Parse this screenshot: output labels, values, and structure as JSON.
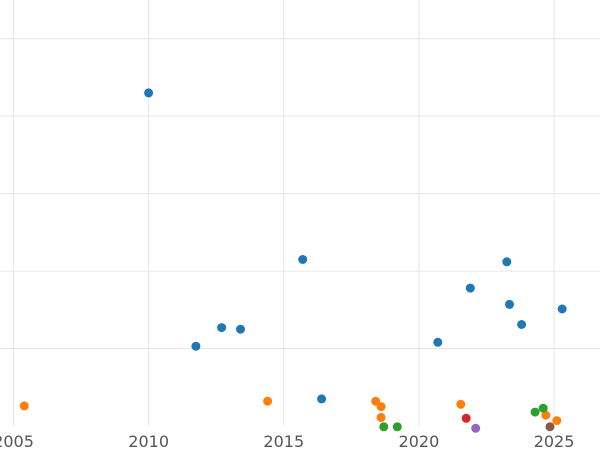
{
  "chart_data": {
    "type": "scatter",
    "title": "",
    "xlabel": "",
    "ylabel": "",
    "grid": true,
    "xlim": [
      2004.5,
      2026.7
    ],
    "ylim": [
      0,
      5.5
    ],
    "x_ticks": [
      2005,
      2010,
      2015,
      2020,
      2025
    ],
    "x_tick_labels": [
      "2005",
      "2010",
      "2015",
      "2020",
      "2025"
    ],
    "y_gridlines": [
      1,
      2,
      3,
      4,
      5
    ],
    "series": [
      {
        "color": "#1f77b4",
        "points": [
          {
            "x": 2010.0,
            "y": 4.3
          },
          {
            "x": 2011.75,
            "y": 1.03
          },
          {
            "x": 2012.7,
            "y": 1.27
          },
          {
            "x": 2013.4,
            "y": 1.25
          },
          {
            "x": 2015.7,
            "y": 2.15
          },
          {
            "x": 2016.4,
            "y": 0.35
          },
          {
            "x": 2020.7,
            "y": 1.08
          },
          {
            "x": 2021.9,
            "y": 1.78
          },
          {
            "x": 2023.25,
            "y": 2.12
          },
          {
            "x": 2023.35,
            "y": 1.57
          },
          {
            "x": 2023.8,
            "y": 1.31
          },
          {
            "x": 2025.3,
            "y": 1.51
          }
        ]
      },
      {
        "color": "#ff7f0e",
        "points": [
          {
            "x": 2005.4,
            "y": 0.26
          },
          {
            "x": 2014.4,
            "y": 0.32
          },
          {
            "x": 2018.4,
            "y": 0.32
          },
          {
            "x": 2018.6,
            "y": 0.25
          },
          {
            "x": 2018.6,
            "y": 0.11
          },
          {
            "x": 2021.55,
            "y": 0.28
          },
          {
            "x": 2024.7,
            "y": 0.14
          },
          {
            "x": 2025.1,
            "y": 0.07
          }
        ]
      },
      {
        "color": "#2ca02c",
        "points": [
          {
            "x": 2018.7,
            "y": -0.01
          },
          {
            "x": 2019.2,
            "y": -0.01
          },
          {
            "x": 2024.3,
            "y": 0.18
          },
          {
            "x": 2024.6,
            "y": 0.23
          }
        ]
      },
      {
        "color": "#d62728",
        "points": [
          {
            "x": 2021.75,
            "y": 0.1
          }
        ]
      },
      {
        "color": "#9467bd",
        "points": [
          {
            "x": 2022.1,
            "y": -0.03
          }
        ]
      },
      {
        "color": "#8c564b",
        "points": [
          {
            "x": 2024.85,
            "y": -0.01
          }
        ]
      }
    ]
  }
}
